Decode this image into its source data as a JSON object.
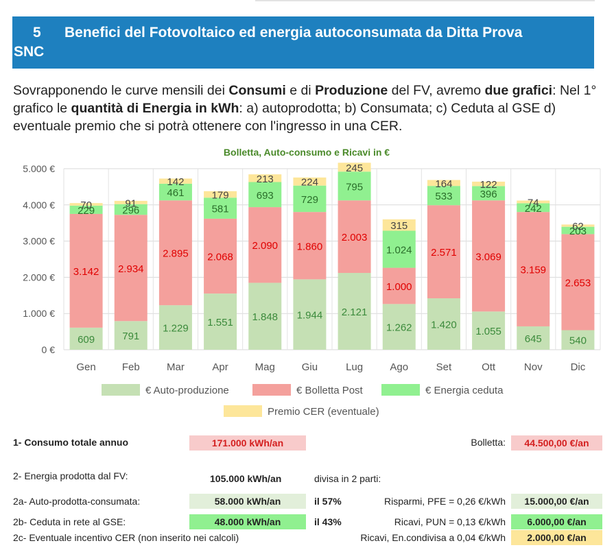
{
  "section": {
    "number": "5",
    "title_line1": "Benefici del Fotovoltaico ed energia autoconsumata da Ditta Prova",
    "title_line2": "SNC"
  },
  "intro": {
    "p1": "Sovrapponendo le curve mensili dei ",
    "b1": "Consumi",
    "p2": " e di ",
    "b2": "Produzione",
    "p3": " del FV, avremo ",
    "b3": "due grafici",
    "p4": ": Nel 1° grafico le ",
    "b4": "quantità di Energia in kWh",
    "p5": ": a) autoprodotta; b) Consumata; c) Ceduta al GSE d) eventuale premio che si potrà ottenere con l'ingresso in una CER."
  },
  "chart_data": {
    "type": "bar",
    "stacked": true,
    "title": "Bolletta, Auto-consumo e Ricavi in €",
    "categories": [
      "Gen",
      "Feb",
      "Mar",
      "Apr",
      "Mag",
      "Giu",
      "Lug",
      "Ago",
      "Set",
      "Ott",
      "Nov",
      "Dic"
    ],
    "ylim": [
      0,
      5000
    ],
    "yticks": [
      "0 €",
      "1.000 €",
      "2.000 €",
      "3.000 €",
      "4.000 €",
      "5.000 €"
    ],
    "grid": true,
    "legend_position": "bottom",
    "series": [
      {
        "name": "€ Auto-produzione",
        "color": "#c5e0b4",
        "label_color": "#3b8a3b",
        "values": [
          609,
          791,
          1229,
          1551,
          1848,
          1944,
          2121,
          1262,
          1420,
          1055,
          645,
          540
        ],
        "labels": [
          "609",
          "791",
          "1.229",
          "1.551",
          "1.848",
          "1.944",
          "2.121",
          "1.262",
          "1.420",
          "1.055",
          "645",
          "540"
        ]
      },
      {
        "name": "€ Bolletta Post",
        "color": "#f4a09c",
        "label_color": "#e00000",
        "values": [
          3142,
          2934,
          2895,
          2068,
          2090,
          1860,
          2003,
          1000,
          2571,
          3069,
          3159,
          2653
        ],
        "labels": [
          "3.142",
          "2.934",
          "2.895",
          "2.068",
          "2.090",
          "1.860",
          "2.003",
          "1.000",
          "2.571",
          "3.069",
          "3.159",
          "2.653"
        ]
      },
      {
        "name": "€ Energia ceduta",
        "color": "#90f090",
        "label_color": "#2a6e2a",
        "values": [
          229,
          296,
          461,
          581,
          693,
          729,
          795,
          1024,
          533,
          396,
          242,
          203
        ],
        "labels": [
          "229",
          "296",
          "461",
          "581",
          "693",
          "729",
          "795",
          "1.024",
          "533",
          "396",
          "242",
          "203"
        ]
      },
      {
        "name": "Premio CER (eventuale)",
        "color": "#fde69a",
        "label_color": "#444444",
        "values": [
          70,
          91,
          142,
          179,
          213,
          224,
          245,
          315,
          164,
          122,
          74,
          62
        ],
        "labels": [
          "70",
          "91",
          "142",
          "179",
          "213",
          "224",
          "245",
          "315",
          "164",
          "122",
          "74",
          "62"
        ]
      }
    ]
  },
  "summary": {
    "row1": {
      "label": "1- Consumo totale annuo",
      "value": "171.000 kWh/an",
      "bill_label": "Bolletta:",
      "bill_value": "44.500,00 €/an"
    },
    "row2": {
      "label": "2- Energia prodotta dal FV:",
      "value": "105.000 kWh/an",
      "note": "divisa in 2 parti:"
    },
    "row3": {
      "label": "2a- Auto-prodotta-consumata:",
      "value": "58.000 kWh/an",
      "pct": "il 57%",
      "right_label": "Risparmi, PFE = 0,26 €/kWh",
      "right_value": "15.000,00 €/an"
    },
    "row4": {
      "label": "2b- Ceduta in rete al GSE:",
      "value": "48.000 kWh/an",
      "pct": "il 43%",
      "right_label": "Ricavi, PUN = 0,13 €/kWh",
      "right_value": "6.000,00 €/an"
    },
    "row5": {
      "label": "2c- Eventuale incentivo CER (non inserito nei calcoli)",
      "right_label": "Ricavi, En.condivisa a 0,04 €/kWh",
      "right_value": "2.000,00 €/an"
    },
    "colors": {
      "consumo": "#f8cbcb",
      "bolletta": "#f8cbcb",
      "bolletta_text": "#d42020",
      "consumo_text": "#d42020",
      "auto": "#e2efda",
      "ceduta": "#90f090",
      "cer": "#fde69a"
    }
  }
}
